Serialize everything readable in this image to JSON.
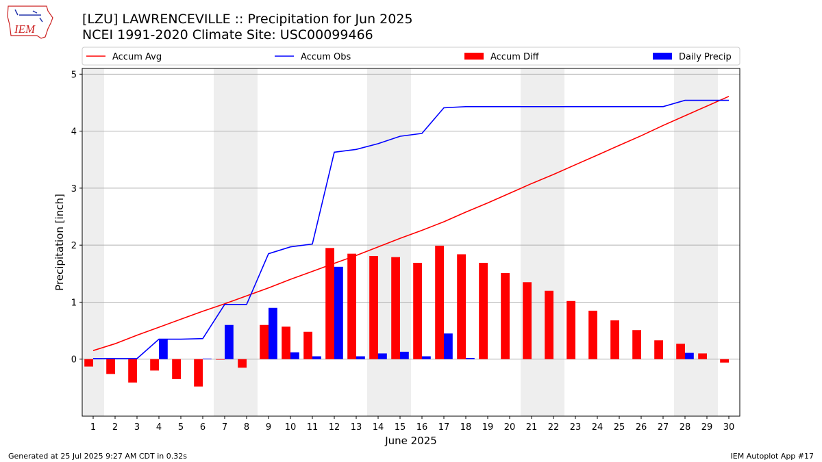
{
  "header": {
    "title_line1": "[LZU] LAWRENCEVILLE :: Precipitation for Jun 2025",
    "title_line2": "NCEI 1991-2020 Climate Site: USC00099466",
    "logo_text": "IEM"
  },
  "footer": {
    "generated": "Generated at 25 Jul 2025 9:27 AM CDT in 0.32s",
    "app": "IEM Autoplot App #17"
  },
  "colors": {
    "avg": "#ff0000",
    "obs": "#0000ff",
    "diff": "#ff0000",
    "daily": "#0000ff",
    "weekend": "#eeeeee",
    "grid": "#b0b0b0"
  },
  "chart_data": {
    "type": "bar",
    "xlabel": "June 2025",
    "ylabel": "Precipitation [inch]",
    "xlim": [
      0.5,
      30.5
    ],
    "ylim": [
      -1.0,
      5.1
    ],
    "yticks": [
      0,
      1,
      2,
      3,
      4,
      5
    ],
    "grid": true,
    "legend_position": "top, above plot",
    "days": [
      1,
      2,
      3,
      4,
      5,
      6,
      7,
      8,
      9,
      10,
      11,
      12,
      13,
      14,
      15,
      16,
      17,
      18,
      19,
      20,
      21,
      22,
      23,
      24,
      25,
      26,
      27,
      28,
      29,
      30
    ],
    "shaded_days": [
      1,
      7,
      8,
      14,
      15,
      21,
      22,
      28,
      29
    ],
    "series": [
      {
        "name": "Accum Avg",
        "kind": "line",
        "values": [
          0.15,
          0.27,
          0.42,
          0.56,
          0.7,
          0.84,
          0.97,
          1.11,
          1.25,
          1.4,
          1.54,
          1.68,
          1.82,
          1.97,
          2.12,
          2.26,
          2.41,
          2.58,
          2.74,
          2.91,
          3.08,
          3.24,
          3.41,
          3.58,
          3.75,
          3.92,
          4.1,
          4.27,
          4.44,
          4.61
        ]
      },
      {
        "name": "Accum Obs",
        "kind": "line",
        "values": [
          0.01,
          0.01,
          0.01,
          0.35,
          0.35,
          0.36,
          0.96,
          0.96,
          1.85,
          1.97,
          2.02,
          3.63,
          3.68,
          3.78,
          3.91,
          3.96,
          4.41,
          4.43,
          4.43,
          4.43,
          4.43,
          4.43,
          4.43,
          4.43,
          4.43,
          4.43,
          4.43,
          4.54,
          4.54,
          4.54
        ]
      },
      {
        "name": "Accum Diff",
        "kind": "bar",
        "values": [
          -0.13,
          -0.26,
          -0.41,
          -0.2,
          -0.35,
          -0.48,
          -0.01,
          -0.15,
          0.6,
          0.57,
          0.48,
          1.95,
          1.85,
          1.81,
          1.79,
          1.69,
          1.99,
          1.84,
          1.69,
          1.51,
          1.35,
          1.2,
          1.02,
          0.85,
          0.68,
          0.51,
          0.33,
          0.27,
          0.1,
          -0.06
        ]
      },
      {
        "name": "Daily Precip",
        "kind": "bar",
        "values": [
          0.01,
          0.0,
          0.0,
          0.35,
          0.0,
          0.01,
          0.6,
          0.0,
          0.9,
          0.12,
          0.05,
          1.62,
          0.05,
          0.1,
          0.13,
          0.05,
          0.45,
          0.02,
          0.0,
          0.0,
          0.0,
          0.0,
          0.0,
          0.0,
          0.0,
          0.0,
          0.0,
          0.11,
          0.0,
          0.0
        ]
      }
    ]
  }
}
